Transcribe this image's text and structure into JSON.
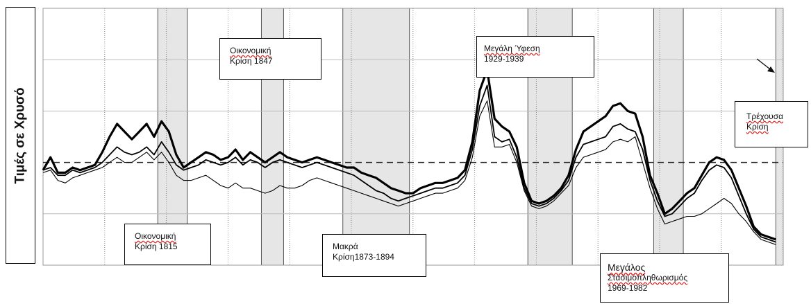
{
  "y_axis_label": "Τιμές σε Χρυσό",
  "annotations": [
    {
      "id": "crisis-1815",
      "lines": [
        "Οικονομική",
        "Κρίση 1815"
      ]
    },
    {
      "id": "crisis-1847",
      "lines": [
        "Οικονομική",
        "Κρίση 1847"
      ]
    },
    {
      "id": "long-crisis",
      "lines": [
        "Μακρά",
        "Κρίση1873-1894"
      ]
    },
    {
      "id": "great-depression",
      "lines": [
        "Μεγάλη Ύφεση",
        "1929-1939"
      ]
    },
    {
      "id": "stagflation",
      "lines": [
        "Μεγάλος",
        "Στασιμοπληθωρισμός",
        "1969-1982"
      ]
    },
    {
      "id": "current-crisis",
      "lines": [
        "Τρέχουσα",
        "Κρίση"
      ]
    }
  ],
  "colors": {
    "line": "#000000",
    "grid": "#888888",
    "shade": "#e6e6e6",
    "shade_border": "#555555",
    "background": "#ffffff"
  },
  "chart_data": {
    "type": "line",
    "title": "",
    "xlabel": "",
    "ylabel": "Τιμές σε Χρυσό",
    "x_range": [
      0,
      100
    ],
    "y_range": [
      0,
      100
    ],
    "grid": true,
    "reference_line": {
      "y": 40,
      "style": "dashed"
    },
    "shaded_regions": [
      {
        "x0": 15.5,
        "x1": 19.5
      },
      {
        "x0": 29.5,
        "x1": 32.5
      },
      {
        "x0": 40.5,
        "x1": 49.5
      },
      {
        "x0": 65.5,
        "x1": 71.5
      },
      {
        "x0": 82.5,
        "x1": 86.5
      },
      {
        "x0": 99.0,
        "x1": 100.0
      }
    ],
    "arrow": {
      "target": "current-crisis"
    },
    "series": [
      {
        "style": "thick",
        "points": [
          [
            0,
            37
          ],
          [
            1,
            42
          ],
          [
            2,
            36
          ],
          [
            3,
            36
          ],
          [
            4,
            38
          ],
          [
            5,
            37
          ],
          [
            6,
            38
          ],
          [
            7,
            39
          ],
          [
            8,
            44
          ],
          [
            9,
            50
          ],
          [
            10,
            55
          ],
          [
            11,
            52
          ],
          [
            12,
            49
          ],
          [
            13,
            52
          ],
          [
            14,
            55
          ],
          [
            15,
            50
          ],
          [
            16,
            56
          ],
          [
            17,
            52
          ],
          [
            18,
            43
          ],
          [
            19,
            38
          ],
          [
            20,
            40
          ],
          [
            21,
            42
          ],
          [
            22,
            44
          ],
          [
            23,
            43
          ],
          [
            24,
            41
          ],
          [
            25,
            42
          ],
          [
            26,
            45
          ],
          [
            27,
            41
          ],
          [
            28,
            44
          ],
          [
            29,
            42
          ],
          [
            30,
            40
          ],
          [
            31,
            42
          ],
          [
            32,
            44
          ],
          [
            33,
            42
          ],
          [
            34,
            41
          ],
          [
            35,
            40
          ],
          [
            36,
            41
          ],
          [
            37,
            42
          ],
          [
            38,
            41
          ],
          [
            39,
            40
          ],
          [
            40,
            39
          ],
          [
            41,
            38
          ],
          [
            42,
            38
          ],
          [
            43,
            36
          ],
          [
            44,
            35
          ],
          [
            45,
            34
          ],
          [
            46,
            32
          ],
          [
            47,
            30
          ],
          [
            48,
            29
          ],
          [
            49,
            28
          ],
          [
            50,
            28
          ],
          [
            51,
            30
          ],
          [
            52,
            31
          ],
          [
            53,
            32
          ],
          [
            54,
            32
          ],
          [
            55,
            33
          ],
          [
            56,
            34
          ],
          [
            57,
            37
          ],
          [
            58,
            48
          ],
          [
            59,
            68
          ],
          [
            60,
            76
          ],
          [
            61,
            57
          ],
          [
            62,
            54
          ],
          [
            63,
            52
          ],
          [
            64,
            46
          ],
          [
            65,
            32
          ],
          [
            66,
            25
          ],
          [
            67,
            24
          ],
          [
            68,
            25
          ],
          [
            69,
            27
          ],
          [
            70,
            30
          ],
          [
            71,
            35
          ],
          [
            72,
            45
          ],
          [
            73,
            52
          ],
          [
            74,
            54
          ],
          [
            75,
            56
          ],
          [
            76,
            58
          ],
          [
            77,
            62
          ],
          [
            78,
            63
          ],
          [
            79,
            60
          ],
          [
            80,
            59
          ],
          [
            81,
            50
          ],
          [
            82,
            35
          ],
          [
            83,
            28
          ],
          [
            84,
            20
          ],
          [
            85,
            22
          ],
          [
            86,
            25
          ],
          [
            87,
            28
          ],
          [
            88,
            30
          ],
          [
            89,
            35
          ],
          [
            90,
            40
          ],
          [
            91,
            42
          ],
          [
            92,
            41
          ],
          [
            93,
            37
          ],
          [
            94,
            30
          ],
          [
            95,
            23
          ],
          [
            96,
            15
          ],
          [
            97,
            12
          ],
          [
            98,
            11
          ],
          [
            99,
            10
          ]
        ]
      },
      {
        "style": "medium",
        "points": [
          [
            0,
            37
          ],
          [
            1,
            38
          ],
          [
            2,
            35
          ],
          [
            3,
            35
          ],
          [
            4,
            37
          ],
          [
            5,
            36
          ],
          [
            6,
            37
          ],
          [
            7,
            38
          ],
          [
            8,
            40
          ],
          [
            9,
            43
          ],
          [
            10,
            46
          ],
          [
            11,
            44
          ],
          [
            12,
            43
          ],
          [
            13,
            44
          ],
          [
            14,
            46
          ],
          [
            15,
            43
          ],
          [
            16,
            48
          ],
          [
            17,
            44
          ],
          [
            18,
            39
          ],
          [
            19,
            37
          ],
          [
            20,
            38
          ],
          [
            21,
            39
          ],
          [
            22,
            41
          ],
          [
            23,
            40
          ],
          [
            24,
            39
          ],
          [
            25,
            40
          ],
          [
            26,
            42
          ],
          [
            27,
            39
          ],
          [
            28,
            41
          ],
          [
            29,
            40
          ],
          [
            30,
            38
          ],
          [
            31,
            40
          ],
          [
            32,
            41
          ],
          [
            33,
            40
          ],
          [
            34,
            39
          ],
          [
            35,
            38
          ],
          [
            36,
            39
          ],
          [
            37,
            40
          ],
          [
            38,
            39
          ],
          [
            39,
            38
          ],
          [
            40,
            37
          ],
          [
            41,
            36
          ],
          [
            42,
            35
          ],
          [
            43,
            33
          ],
          [
            44,
            31
          ],
          [
            45,
            29
          ],
          [
            46,
            28
          ],
          [
            47,
            26
          ],
          [
            48,
            25
          ],
          [
            49,
            26
          ],
          [
            50,
            27
          ],
          [
            51,
            28
          ],
          [
            52,
            29
          ],
          [
            53,
            30
          ],
          [
            54,
            30
          ],
          [
            55,
            31
          ],
          [
            56,
            32
          ],
          [
            57,
            35
          ],
          [
            58,
            45
          ],
          [
            59,
            62
          ],
          [
            60,
            70
          ],
          [
            61,
            50
          ],
          [
            62,
            48
          ],
          [
            63,
            49
          ],
          [
            64,
            42
          ],
          [
            65,
            30
          ],
          [
            66,
            24
          ],
          [
            67,
            23
          ],
          [
            68,
            24
          ],
          [
            69,
            26
          ],
          [
            70,
            29
          ],
          [
            71,
            33
          ],
          [
            72,
            42
          ],
          [
            73,
            47
          ],
          [
            74,
            48
          ],
          [
            75,
            49
          ],
          [
            76,
            50
          ],
          [
            77,
            54
          ],
          [
            78,
            55
          ],
          [
            79,
            53
          ],
          [
            80,
            52
          ],
          [
            81,
            45
          ],
          [
            82,
            33
          ],
          [
            83,
            25
          ],
          [
            84,
            19
          ],
          [
            85,
            20
          ],
          [
            86,
            23
          ],
          [
            87,
            26
          ],
          [
            88,
            28
          ],
          [
            89,
            33
          ],
          [
            90,
            37
          ],
          [
            91,
            39
          ],
          [
            92,
            38
          ],
          [
            93,
            34
          ],
          [
            94,
            27
          ],
          [
            95,
            20
          ],
          [
            96,
            14
          ],
          [
            97,
            11
          ],
          [
            98,
            10
          ],
          [
            99,
            9
          ]
        ]
      },
      {
        "style": "thin",
        "points": [
          [
            0,
            36
          ],
          [
            1,
            37
          ],
          [
            2,
            33
          ],
          [
            3,
            32
          ],
          [
            4,
            34
          ],
          [
            5,
            35
          ],
          [
            6,
            36
          ],
          [
            7,
            37
          ],
          [
            8,
            38
          ],
          [
            9,
            40
          ],
          [
            10,
            42
          ],
          [
            11,
            40
          ],
          [
            12,
            40
          ],
          [
            13,
            42
          ],
          [
            14,
            44
          ],
          [
            15,
            41
          ],
          [
            16,
            44
          ],
          [
            17,
            40
          ],
          [
            18,
            35
          ],
          [
            19,
            33
          ],
          [
            20,
            33
          ],
          [
            21,
            34
          ],
          [
            22,
            35
          ],
          [
            23,
            33
          ],
          [
            24,
            31
          ],
          [
            25,
            30
          ],
          [
            26,
            32
          ],
          [
            27,
            30
          ],
          [
            28,
            30
          ],
          [
            29,
            29
          ],
          [
            30,
            28
          ],
          [
            31,
            29
          ],
          [
            32,
            31
          ],
          [
            33,
            30
          ],
          [
            34,
            30
          ],
          [
            35,
            31
          ],
          [
            36,
            33
          ],
          [
            37,
            34
          ],
          [
            38,
            33
          ],
          [
            39,
            32
          ],
          [
            40,
            31
          ],
          [
            41,
            30
          ],
          [
            42,
            29
          ],
          [
            43,
            28
          ],
          [
            44,
            27
          ],
          [
            45,
            26
          ],
          [
            46,
            25
          ],
          [
            47,
            24
          ],
          [
            48,
            23
          ],
          [
            49,
            24
          ],
          [
            50,
            25
          ],
          [
            51,
            26
          ],
          [
            52,
            27
          ],
          [
            53,
            28
          ],
          [
            54,
            28
          ],
          [
            55,
            29
          ],
          [
            56,
            30
          ],
          [
            57,
            33
          ],
          [
            58,
            42
          ],
          [
            59,
            58
          ],
          [
            60,
            64
          ],
          [
            61,
            46
          ],
          [
            62,
            46
          ],
          [
            63,
            47
          ],
          [
            64,
            40
          ],
          [
            65,
            29
          ],
          [
            66,
            23
          ],
          [
            67,
            22
          ],
          [
            68,
            23
          ],
          [
            69,
            25
          ],
          [
            70,
            28
          ],
          [
            71,
            31
          ],
          [
            72,
            38
          ],
          [
            73,
            42
          ],
          [
            74,
            43
          ],
          [
            75,
            44
          ],
          [
            76,
            45
          ],
          [
            77,
            48
          ],
          [
            78,
            49
          ],
          [
            79,
            48
          ],
          [
            80,
            50
          ],
          [
            81,
            40
          ],
          [
            82,
            30
          ],
          [
            83,
            22
          ],
          [
            84,
            16
          ],
          [
            85,
            17
          ],
          [
            86,
            18
          ],
          [
            87,
            19
          ],
          [
            88,
            19
          ],
          [
            89,
            20
          ],
          [
            90,
            22
          ],
          [
            91,
            24
          ],
          [
            92,
            26
          ],
          [
            93,
            24
          ],
          [
            94,
            20
          ],
          [
            95,
            17
          ],
          [
            96,
            13
          ],
          [
            97,
            10
          ],
          [
            98,
            9
          ],
          [
            99,
            8
          ]
        ]
      }
    ]
  }
}
